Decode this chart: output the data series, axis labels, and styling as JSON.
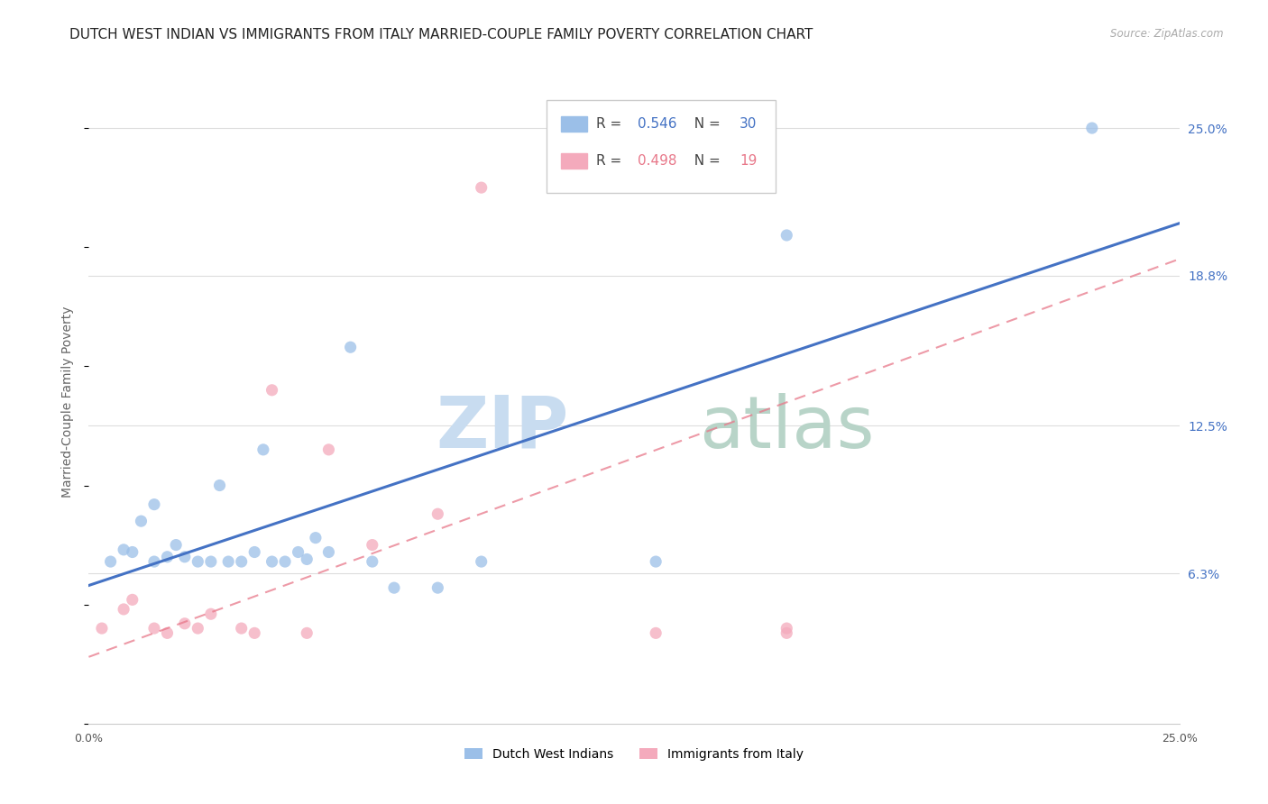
{
  "title": "DUTCH WEST INDIAN VS IMMIGRANTS FROM ITALY MARRIED-COUPLE FAMILY POVERTY CORRELATION CHART",
  "source": "Source: ZipAtlas.com",
  "ylabel": "Married-Couple Family Poverty",
  "xlim": [
    0.0,
    0.25
  ],
  "ylim": [
    0.0,
    0.27
  ],
  "ytick_labels_right": [
    "25.0%",
    "18.8%",
    "12.5%",
    "6.3%"
  ],
  "ytick_vals_right": [
    0.25,
    0.188,
    0.125,
    0.063
  ],
  "blue_r": 0.546,
  "blue_n": 30,
  "pink_r": 0.498,
  "pink_n": 19,
  "blue_color": "#9BBFE8",
  "pink_color": "#F4AABC",
  "blue_line_color": "#4472C4",
  "pink_line_color": "#E8788A",
  "blue_scatter_x": [
    0.005,
    0.008,
    0.01,
    0.012,
    0.015,
    0.015,
    0.018,
    0.02,
    0.022,
    0.025,
    0.028,
    0.03,
    0.032,
    0.035,
    0.038,
    0.04,
    0.042,
    0.045,
    0.048,
    0.05,
    0.052,
    0.055,
    0.06,
    0.065,
    0.07,
    0.08,
    0.09,
    0.13,
    0.16,
    0.23
  ],
  "blue_scatter_y": [
    0.068,
    0.073,
    0.072,
    0.085,
    0.092,
    0.068,
    0.07,
    0.075,
    0.07,
    0.068,
    0.068,
    0.1,
    0.068,
    0.068,
    0.072,
    0.115,
    0.068,
    0.068,
    0.072,
    0.069,
    0.078,
    0.072,
    0.158,
    0.068,
    0.057,
    0.057,
    0.068,
    0.068,
    0.205,
    0.25
  ],
  "pink_scatter_x": [
    0.003,
    0.008,
    0.01,
    0.015,
    0.018,
    0.022,
    0.025,
    0.028,
    0.035,
    0.038,
    0.042,
    0.05,
    0.055,
    0.065,
    0.08,
    0.09,
    0.13,
    0.16,
    0.16
  ],
  "pink_scatter_y": [
    0.04,
    0.048,
    0.052,
    0.04,
    0.038,
    0.042,
    0.04,
    0.046,
    0.04,
    0.038,
    0.14,
    0.038,
    0.115,
    0.075,
    0.088,
    0.225,
    0.038,
    0.038,
    0.04
  ],
  "blue_line_x": [
    0.0,
    0.25
  ],
  "blue_line_y": [
    0.058,
    0.21
  ],
  "pink_line_x": [
    0.0,
    0.25
  ],
  "pink_line_y": [
    0.028,
    0.195
  ],
  "background_color": "#FFFFFF",
  "grid_color": "#DDDDDD",
  "title_fontsize": 11,
  "axis_label_fontsize": 10,
  "tick_fontsize": 9,
  "scatter_size": 90,
  "scatter_alpha": 0.75,
  "watermark_zip_color": "#C8DCF0",
  "watermark_atlas_color": "#B8D4C8",
  "blue_legend_label": "Dutch West Indians",
  "pink_legend_label": "Immigrants from Italy"
}
